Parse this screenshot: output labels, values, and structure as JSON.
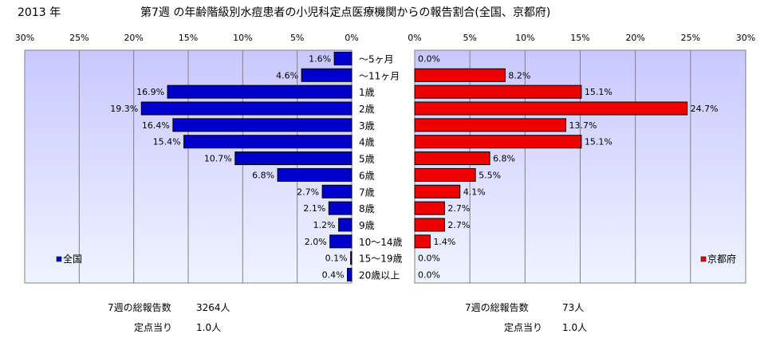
{
  "header": {
    "year": "2013 年",
    "title": "第7週 の年齢階級別水痘患者の小児科定点医療機関からの報告割合(全国、京都府)"
  },
  "chart_data": [
    {
      "type": "bar",
      "orientation": "horizontal",
      "direction": "leftward",
      "categories": [
        "～5ヶ月",
        "～11ヶ月",
        "1歳",
        "2歳",
        "3歳",
        "4歳",
        "5歳",
        "6歳",
        "7歳",
        "8歳",
        "9歳",
        "10～14歳",
        "15～19歳",
        "20歳以上"
      ],
      "series": [
        {
          "name": "全国",
          "values": [
            1.6,
            4.6,
            16.9,
            19.3,
            16.4,
            15.4,
            10.7,
            6.8,
            2.7,
            2.1,
            1.2,
            2.0,
            0.1,
            0.4
          ],
          "color": "#0000cc"
        }
      ],
      "value_labels": [
        "1.6%",
        "4.6%",
        "16.9%",
        "19.3%",
        "16.4%",
        "15.4%",
        "10.7%",
        "6.8%",
        "2.7%",
        "2.1%",
        "1.2%",
        "2.0%",
        "0.1%",
        "0.4%"
      ],
      "xlim": [
        0,
        30
      ],
      "xticks": [
        "30%",
        "25%",
        "20%",
        "15%",
        "10%",
        "5%",
        "0%"
      ],
      "legend": "全国",
      "legend_position": "bottom-left",
      "grid": true
    },
    {
      "type": "bar",
      "orientation": "horizontal",
      "direction": "rightward",
      "categories": [
        "～5ヶ月",
        "～11ヶ月",
        "1歳",
        "2歳",
        "3歳",
        "4歳",
        "5歳",
        "6歳",
        "7歳",
        "8歳",
        "9歳",
        "10～14歳",
        "15～19歳",
        "20歳以上"
      ],
      "series": [
        {
          "name": "京都府",
          "values": [
            0.0,
            8.2,
            15.1,
            24.7,
            13.7,
            15.1,
            6.8,
            5.5,
            4.1,
            2.7,
            2.7,
            1.4,
            0.0,
            0.0
          ],
          "color": "#ee0000"
        }
      ],
      "value_labels": [
        "0.0%",
        "8.2%",
        "15.1%",
        "24.7%",
        "13.7%",
        "15.1%",
        "6.8%",
        "5.5%",
        "4.1%",
        "2.7%",
        "2.7%",
        "1.4%",
        "0.0%",
        "0.0%"
      ],
      "xlim": [
        0,
        30
      ],
      "xticks": [
        "0%",
        "5%",
        "10%",
        "15%",
        "20%",
        "25%",
        "30%"
      ],
      "legend": "京都府",
      "legend_position": "bottom-right",
      "grid": true
    }
  ],
  "footer": {
    "left_total_label": "7週の総報告数",
    "left_total_value": "3264人",
    "left_per_label": "定点当り",
    "left_per_value": "1.0人",
    "right_total_label": "7週の総報告数",
    "right_total_value": "73人",
    "right_per_label": "定点当り",
    "right_per_value": "1.0人"
  },
  "colors": {
    "plot_top": "#ccccff",
    "plot_bottom": "#eef4ff",
    "left_bar": "#0000cc",
    "right_bar": "#ee0000"
  }
}
